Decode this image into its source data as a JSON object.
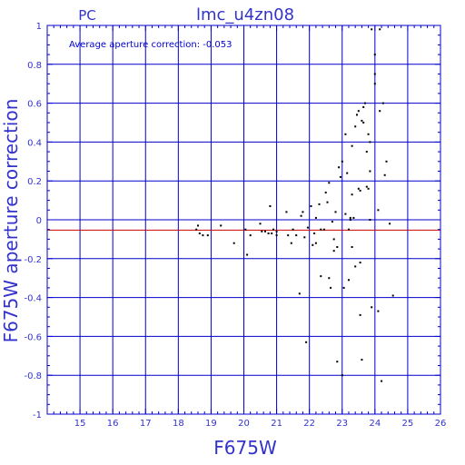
{
  "chart_data": {
    "type": "scatter",
    "title": "lmc_u4zn08",
    "subtitle": "PC",
    "annotation": "Average aperture correction:  -0.053",
    "xlabel": "F675W",
    "ylabel": "F675W aperture correction",
    "xlim": [
      14,
      26
    ],
    "ylim": [
      -1,
      1
    ],
    "xticks": [
      "15",
      "16",
      "17",
      "18",
      "19",
      "20",
      "21",
      "22",
      "23",
      "24",
      "25",
      "26"
    ],
    "yticks": [
      "1",
      "0.8",
      "0.6",
      "0.4",
      "0.2",
      "0",
      "-0.2",
      "-0.4",
      "-0.6",
      "-0.8",
      "-1"
    ],
    "grid": true,
    "reference_lines": [
      {
        "y": 0,
        "color": "#0000cc"
      },
      {
        "y": -0.053,
        "color": "#cc0000"
      }
    ],
    "colors": {
      "axes": "#0000cc",
      "text": "#3333cc",
      "points": "#000000",
      "average_line": "#cc0000"
    },
    "points": [
      [
        18.6,
        -0.03
      ],
      [
        18.55,
        -0.05
      ],
      [
        18.65,
        -0.07
      ],
      [
        18.75,
        -0.08
      ],
      [
        18.9,
        -0.08
      ],
      [
        19.3,
        -0.03
      ],
      [
        19.7,
        -0.12
      ],
      [
        20.05,
        -0.05
      ],
      [
        20.1,
        -0.18
      ],
      [
        20.2,
        -0.08
      ],
      [
        20.5,
        -0.02
      ],
      [
        20.55,
        -0.06
      ],
      [
        20.65,
        -0.06
      ],
      [
        20.75,
        -0.07
      ],
      [
        20.8,
        0.07
      ],
      [
        20.85,
        -0.07
      ],
      [
        20.9,
        -0.05
      ],
      [
        21.0,
        -0.06
      ],
      [
        21.0,
        -0.08
      ],
      [
        21.3,
        0.04
      ],
      [
        21.35,
        -0.08
      ],
      [
        21.45,
        -0.12
      ],
      [
        21.5,
        -0.05
      ],
      [
        21.6,
        -0.08
      ],
      [
        21.7,
        -0.38
      ],
      [
        21.75,
        0.02
      ],
      [
        21.8,
        0.04
      ],
      [
        21.85,
        -0.09
      ],
      [
        21.9,
        -0.63
      ],
      [
        21.95,
        -0.04
      ],
      [
        22.05,
        0.07
      ],
      [
        22.1,
        -0.13
      ],
      [
        22.15,
        -0.07
      ],
      [
        22.2,
        -0.12
      ],
      [
        22.2,
        0.01
      ],
      [
        22.3,
        0.08
      ],
      [
        22.35,
        -0.05
      ],
      [
        22.35,
        -0.29
      ],
      [
        22.45,
        -0.05
      ],
      [
        22.5,
        0.14
      ],
      [
        22.55,
        0.09
      ],
      [
        22.6,
        0.19
      ],
      [
        22.6,
        -0.3
      ],
      [
        22.65,
        -0.35
      ],
      [
        22.7,
        -0.01
      ],
      [
        22.75,
        -0.1
      ],
      [
        22.75,
        -0.16
      ],
      [
        22.8,
        0.04
      ],
      [
        22.85,
        -0.14
      ],
      [
        22.85,
        -0.73
      ],
      [
        22.9,
        0.27
      ],
      [
        22.95,
        0.22
      ],
      [
        23.0,
        0.3
      ],
      [
        23.05,
        -0.35
      ],
      [
        23.0,
        -0.8
      ],
      [
        23.1,
        0.03
      ],
      [
        23.1,
        0.44
      ],
      [
        23.15,
        0.24
      ],
      [
        23.2,
        -0.31
      ],
      [
        23.2,
        -0.05
      ],
      [
        23.25,
        0.0
      ],
      [
        23.25,
        0.01
      ],
      [
        23.3,
        -0.14
      ],
      [
        23.3,
        0.13
      ],
      [
        23.3,
        0.38
      ],
      [
        23.35,
        0.01
      ],
      [
        23.4,
        0.48
      ],
      [
        23.4,
        -0.24
      ],
      [
        23.45,
        0.54
      ],
      [
        23.5,
        0.56
      ],
      [
        23.5,
        0.16
      ],
      [
        23.55,
        0.15
      ],
      [
        23.55,
        -0.22
      ],
      [
        23.55,
        -0.49
      ],
      [
        23.6,
        -0.72
      ],
      [
        23.6,
        0.51
      ],
      [
        23.65,
        0.58
      ],
      [
        23.65,
        0.5
      ],
      [
        23.7,
        0.6
      ],
      [
        23.75,
        0.17
      ],
      [
        23.75,
        0.35
      ],
      [
        23.8,
        0.16
      ],
      [
        23.8,
        0.44
      ],
      [
        23.85,
        0.4
      ],
      [
        23.85,
        0.0
      ],
      [
        23.85,
        0.25
      ],
      [
        23.9,
        -0.45
      ],
      [
        23.9,
        0.98
      ],
      [
        24.0,
        0.7
      ],
      [
        24.0,
        0.75
      ],
      [
        24.0,
        0.85
      ],
      [
        24.1,
        0.05
      ],
      [
        24.1,
        -0.47
      ],
      [
        24.15,
        0.56
      ],
      [
        24.15,
        0.98
      ],
      [
        24.2,
        -0.83
      ],
      [
        24.25,
        0.6
      ],
      [
        24.3,
        0.23
      ],
      [
        24.35,
        0.3
      ],
      [
        24.45,
        -0.02
      ],
      [
        24.55,
        -0.39
      ]
    ]
  }
}
